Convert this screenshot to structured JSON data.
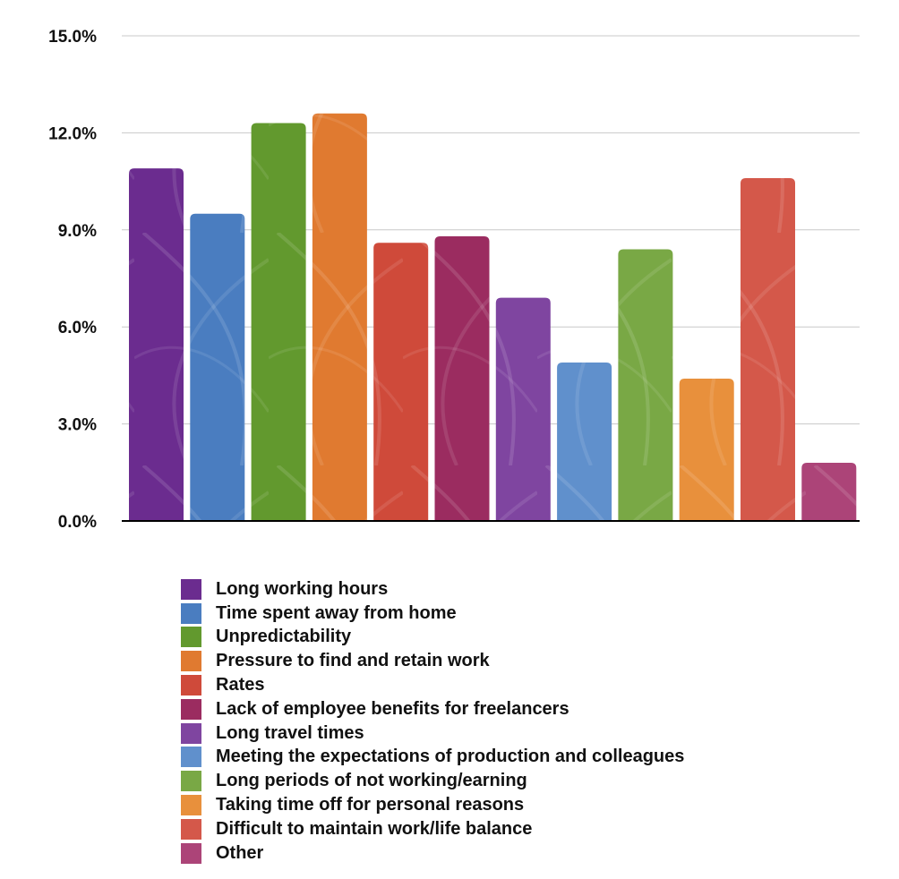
{
  "chart_data": {
    "type": "bar",
    "categories": [
      "Long working hours",
      "Time spent away from home",
      "Unpredictability",
      "Pressure to find and retain work",
      "Rates",
      "Lack of employee benefits for freelancers",
      "Long travel times",
      "Meeting the expectations of production and colleagues",
      "Long periods of not working/earning",
      "Taking time off for personal reasons",
      "Difficult to maintain work/life balance",
      "Other"
    ],
    "values": [
      10.9,
      9.5,
      12.3,
      12.6,
      8.6,
      8.8,
      6.9,
      4.9,
      8.4,
      4.4,
      10.6,
      1.8
    ],
    "colors": [
      "#6b2c8f",
      "#4a7dc0",
      "#62992e",
      "#e07a30",
      "#cf4a3a",
      "#9b2c60",
      "#7f45a0",
      "#6090cc",
      "#79a845",
      "#e8903c",
      "#d4584a",
      "#ac4478"
    ],
    "ylim": [
      0,
      15
    ],
    "yticks": [
      "0.0%",
      "3.0%",
      "6.0%",
      "9.0%",
      "12.0%",
      "15.0%"
    ],
    "ytick_values": [
      0,
      3,
      6,
      9,
      12,
      15
    ],
    "grid": true,
    "legend_position": "bottom"
  }
}
